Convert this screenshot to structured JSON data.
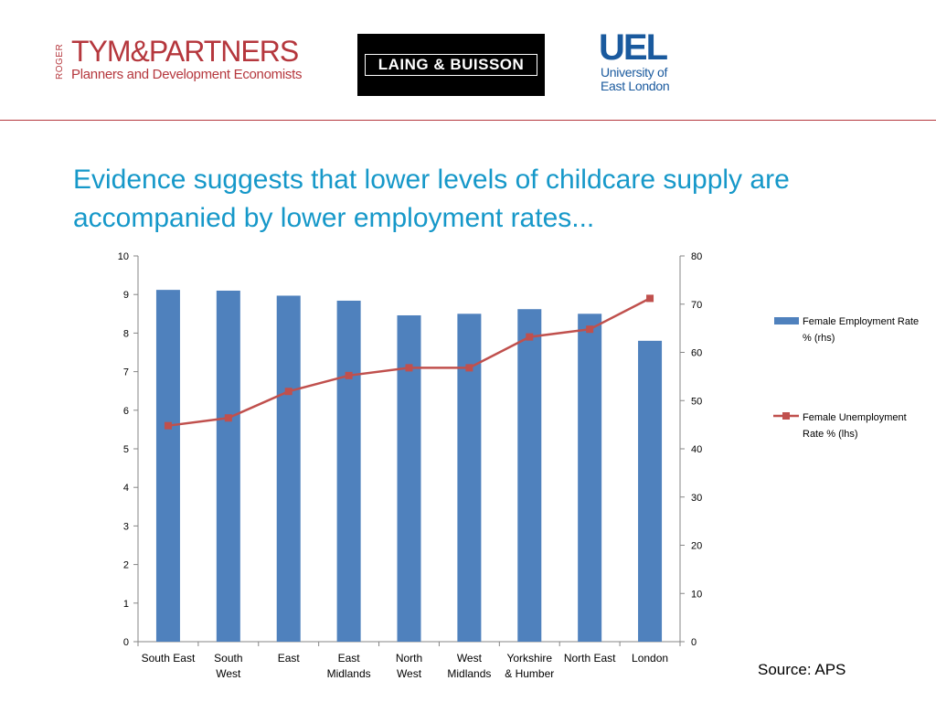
{
  "logos": {
    "rtp": {
      "side": "ROGER",
      "name": "TYM&PARTNERS",
      "tagline": "Planners and Development Economists"
    },
    "lb": {
      "name": "LAING & BUISSON"
    },
    "uel": {
      "big": "UEL",
      "small": "University of\nEast London"
    }
  },
  "colors": {
    "bar": "#4f81bd",
    "line": "#c0504d",
    "headline": "#1698c9",
    "brand_red": "#b5373d",
    "uel_blue": "#1a5a9e"
  },
  "headline": "Evidence suggests that lower levels of childcare supply are accompanied by lower employment rates...",
  "source": "Source: APS",
  "chart_data": {
    "type": "bar",
    "categories": [
      [
        "South East"
      ],
      [
        "South",
        "West"
      ],
      [
        "East"
      ],
      [
        "East",
        "Midlands"
      ],
      [
        "North",
        "West"
      ],
      [
        "West",
        "Midlands"
      ],
      [
        "Yorkshire",
        "& Humber"
      ],
      [
        "North East"
      ],
      [
        "London"
      ]
    ],
    "series": [
      {
        "name": "Female Employment Rate % (rhs)",
        "type": "bar",
        "axis": "left",
        "values": [
          9.12,
          9.1,
          8.97,
          8.84,
          8.46,
          8.5,
          8.62,
          8.5,
          7.8
        ]
      },
      {
        "name": "Female Unemployment Rate % (lhs)",
        "type": "line",
        "axis": "right",
        "values": [
          44.8,
          46.4,
          51.9,
          55.2,
          56.8,
          56.8,
          63.2,
          64.8,
          71.2
        ]
      }
    ],
    "left_axis": {
      "min": 0,
      "max": 10,
      "ticks": [
        "0",
        "1",
        "2",
        "3",
        "4",
        "5",
        "6",
        "7",
        "8",
        "9",
        "10"
      ]
    },
    "right_axis": {
      "min": 0,
      "max": 80,
      "ticks": [
        "0",
        "10",
        "20",
        "30",
        "40",
        "50",
        "60",
        "70",
        "80"
      ]
    },
    "legend": {
      "position": "right",
      "items": [
        {
          "lines": [
            "Female Employment Rate",
            "% (rhs)"
          ]
        },
        {
          "lines": [
            "Female Unemployment",
            "Rate % (lhs)"
          ]
        }
      ]
    },
    "grid": false
  }
}
